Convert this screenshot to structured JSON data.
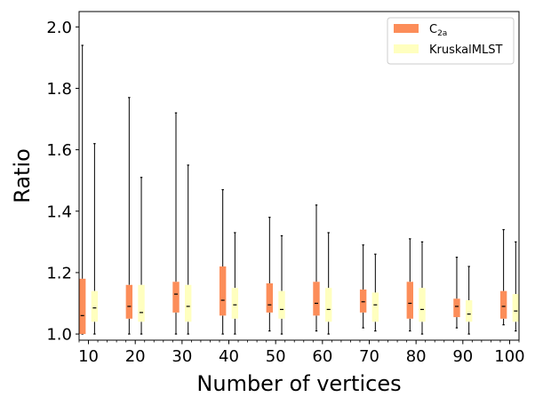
{
  "chart_data": {
    "type": "boxplot",
    "title": "",
    "xlabel": "Number of vertices",
    "ylabel": "Ratio",
    "ylim": [
      0.98,
      2.05
    ],
    "xlim": [
      8,
      102
    ],
    "yticks": [
      1.0,
      1.2,
      1.4,
      1.6,
      1.8,
      2.0
    ],
    "xticks": [
      10,
      20,
      30,
      40,
      50,
      60,
      70,
      80,
      90,
      100
    ],
    "grid": false,
    "legend_position": "top-right",
    "series": [
      {
        "name": "C",
        "name_sub": "2a",
        "color": "#fc8d59",
        "offset": -1.3,
        "boxes": [
          {
            "x": 10,
            "whislo": 1.0,
            "q1": 1.0,
            "med": 1.06,
            "q3": 1.18,
            "whishi": 1.94
          },
          {
            "x": 20,
            "whislo": 1.0,
            "q1": 1.05,
            "med": 1.09,
            "q3": 1.16,
            "whishi": 1.77
          },
          {
            "x": 30,
            "whislo": 1.0,
            "q1": 1.07,
            "med": 1.13,
            "q3": 1.17,
            "whishi": 1.72
          },
          {
            "x": 40,
            "whislo": 1.0,
            "q1": 1.06,
            "med": 1.11,
            "q3": 1.22,
            "whishi": 1.47
          },
          {
            "x": 50,
            "whislo": 1.01,
            "q1": 1.07,
            "med": 1.095,
            "q3": 1.165,
            "whishi": 1.38
          },
          {
            "x": 60,
            "whislo": 1.01,
            "q1": 1.06,
            "med": 1.1,
            "q3": 1.17,
            "whishi": 1.42
          },
          {
            "x": 70,
            "whislo": 1.02,
            "q1": 1.07,
            "med": 1.105,
            "q3": 1.145,
            "whishi": 1.29
          },
          {
            "x": 80,
            "whislo": 1.01,
            "q1": 1.05,
            "med": 1.1,
            "q3": 1.17,
            "whishi": 1.31
          },
          {
            "x": 90,
            "whislo": 1.02,
            "q1": 1.055,
            "med": 1.09,
            "q3": 1.115,
            "whishi": 1.25
          },
          {
            "x": 100,
            "whislo": 1.03,
            "q1": 1.05,
            "med": 1.09,
            "q3": 1.14,
            "whishi": 1.34
          }
        ]
      },
      {
        "name": "KruskalMLST",
        "name_sub": "",
        "color": "#ffffbf",
        "offset": 1.3,
        "boxes": [
          {
            "x": 10,
            "whislo": 1.0,
            "q1": 1.04,
            "med": 1.085,
            "q3": 1.14,
            "whishi": 1.62
          },
          {
            "x": 20,
            "whislo": 1.0,
            "q1": 1.04,
            "med": 1.07,
            "q3": 1.16,
            "whishi": 1.51
          },
          {
            "x": 30,
            "whislo": 1.0,
            "q1": 1.04,
            "med": 1.09,
            "q3": 1.16,
            "whishi": 1.55
          },
          {
            "x": 40,
            "whislo": 1.0,
            "q1": 1.05,
            "med": 1.095,
            "q3": 1.15,
            "whishi": 1.33
          },
          {
            "x": 50,
            "whislo": 1.0,
            "q1": 1.05,
            "med": 1.08,
            "q3": 1.14,
            "whishi": 1.32
          },
          {
            "x": 60,
            "whislo": 1.0,
            "q1": 1.04,
            "med": 1.08,
            "q3": 1.15,
            "whishi": 1.33
          },
          {
            "x": 70,
            "whislo": 1.01,
            "q1": 1.04,
            "med": 1.095,
            "q3": 1.135,
            "whishi": 1.26
          },
          {
            "x": 80,
            "whislo": 1.0,
            "q1": 1.04,
            "med": 1.08,
            "q3": 1.15,
            "whishi": 1.3
          },
          {
            "x": 90,
            "whislo": 1.0,
            "q1": 1.04,
            "med": 1.065,
            "q3": 1.11,
            "whishi": 1.22
          },
          {
            "x": 100,
            "whislo": 1.01,
            "q1": 1.04,
            "med": 1.075,
            "q3": 1.13,
            "whishi": 1.3
          }
        ]
      }
    ]
  }
}
